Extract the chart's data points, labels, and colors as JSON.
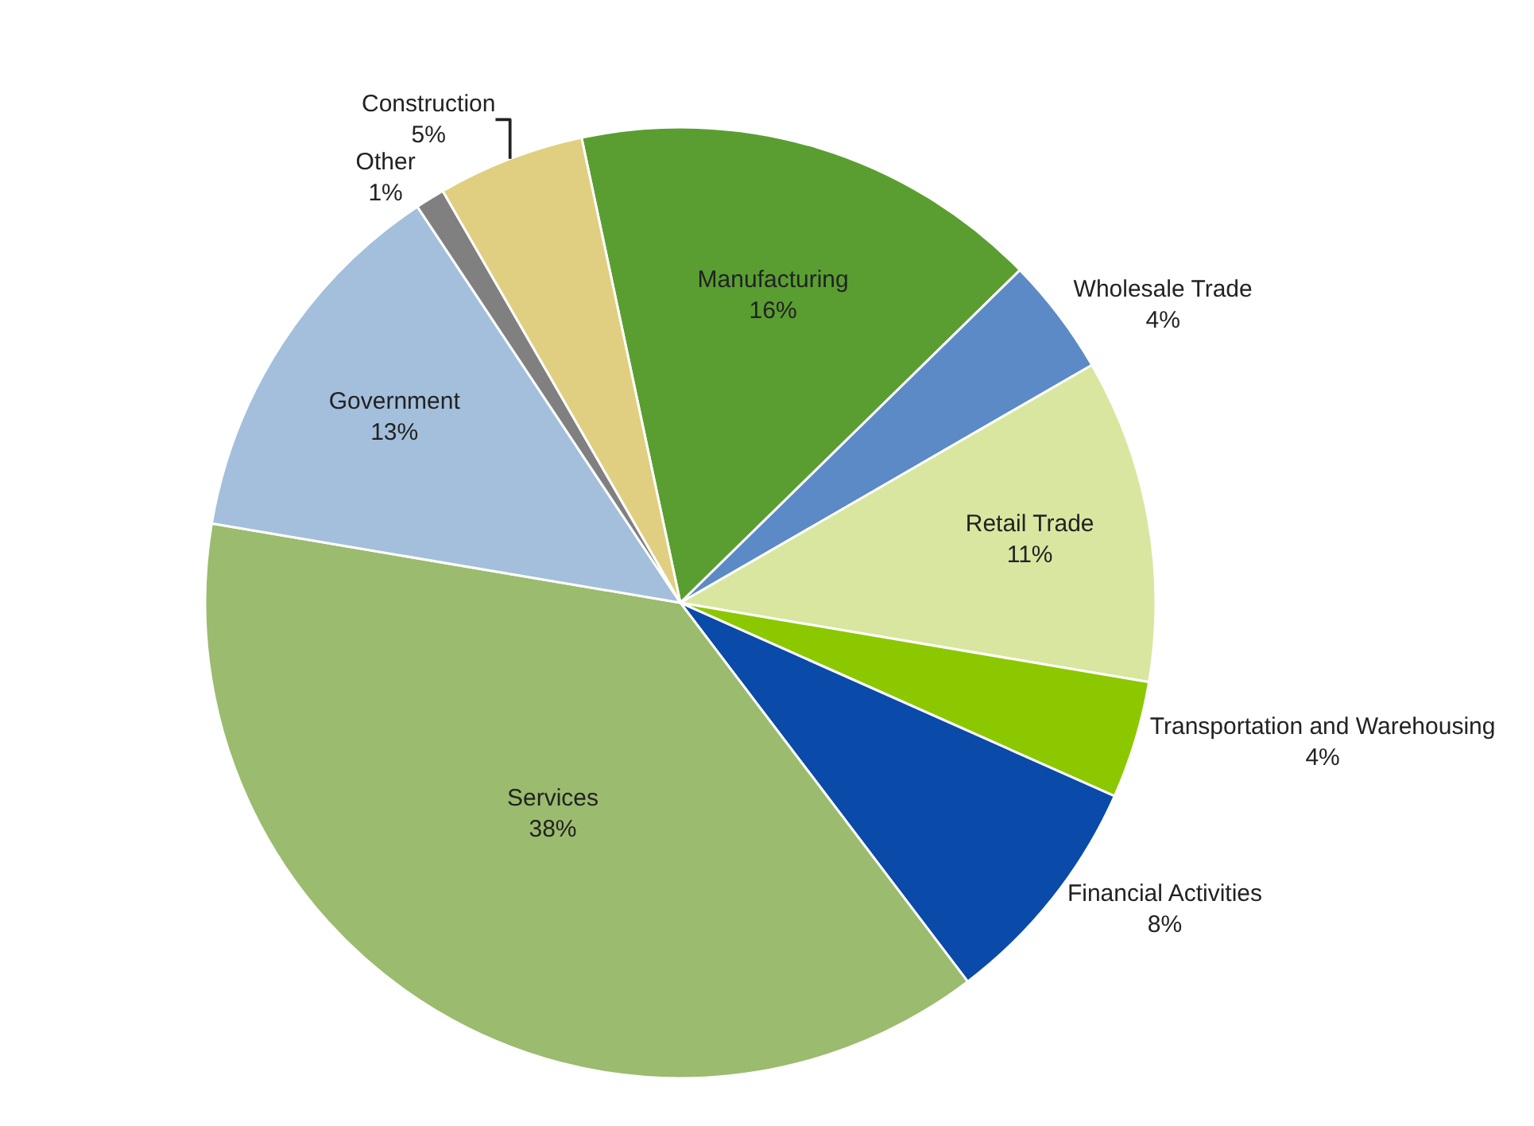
{
  "chart_data": {
    "type": "pie",
    "categories": [
      "Manufacturing",
      "Wholesale Trade",
      "Retail Trade",
      "Transportation and Warehousing",
      "Financial Activities",
      "Services",
      "Government",
      "Other",
      "Construction"
    ],
    "values": [
      16,
      4,
      11,
      4,
      8,
      38,
      13,
      1,
      5
    ],
    "value_labels": [
      "16%",
      "4%",
      "11%",
      "4%",
      "8%",
      "38%",
      "13%",
      "1%",
      "5%"
    ],
    "colors": [
      "#5a9e32",
      "#5b8ac6",
      "#d8e6a0",
      "#8cc800",
      "#0a4aa8",
      "#9bbb6e",
      "#a3bfdc",
      "#808080",
      "#e0cf80"
    ],
    "legend": false
  }
}
